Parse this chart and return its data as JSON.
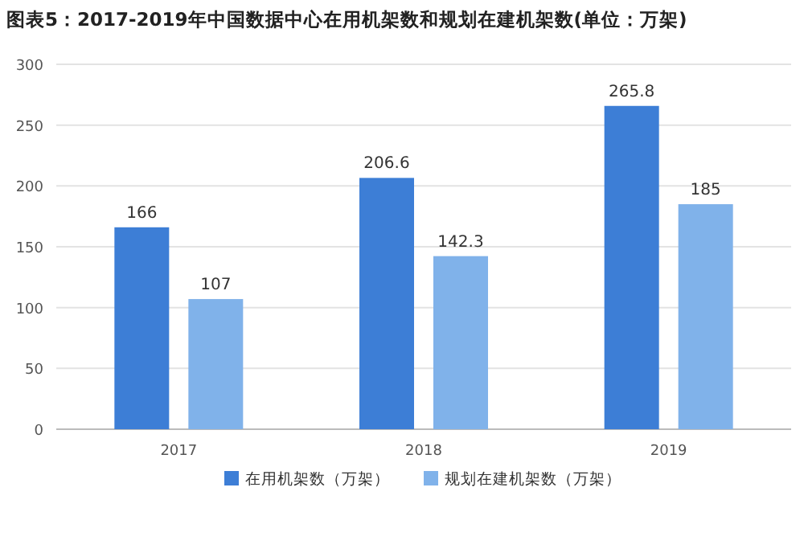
{
  "chart_data": {
    "type": "bar",
    "title": "图表5：2017-2019年中国数据中心在用机架数和规划在建机架数(单位：万架)",
    "categories": [
      "2017",
      "2018",
      "2019"
    ],
    "series": [
      {
        "name": "在用机架数（万架）",
        "color": "#3d7ed6",
        "values": [
          166,
          206.6,
          265.8
        ]
      },
      {
        "name": "规划在建机架数（万架）",
        "color": "#80b2ea",
        "values": [
          107,
          142.3,
          185
        ]
      }
    ],
    "ylim": [
      0,
      300
    ],
    "yticks": [
      0,
      50,
      100,
      150,
      200,
      250,
      300
    ],
    "grid": "y",
    "legend": "bottom",
    "data_labels": true
  }
}
